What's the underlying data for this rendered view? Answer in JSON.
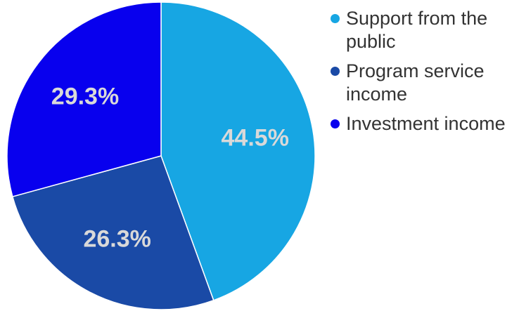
{
  "chart_data": {
    "type": "pie",
    "categories": [
      "Support from the public",
      "Program service income",
      "Investment income"
    ],
    "values": [
      44.5,
      26.3,
      29.3
    ],
    "labels": [
      "44.5%",
      "26.3%",
      "29.3%"
    ],
    "colors": [
      "#17a6e3",
      "#1a4aa6",
      "#0800ee"
    ],
    "start_angle": "12 o'clock",
    "direction": "clockwise",
    "legend_position": "right"
  }
}
